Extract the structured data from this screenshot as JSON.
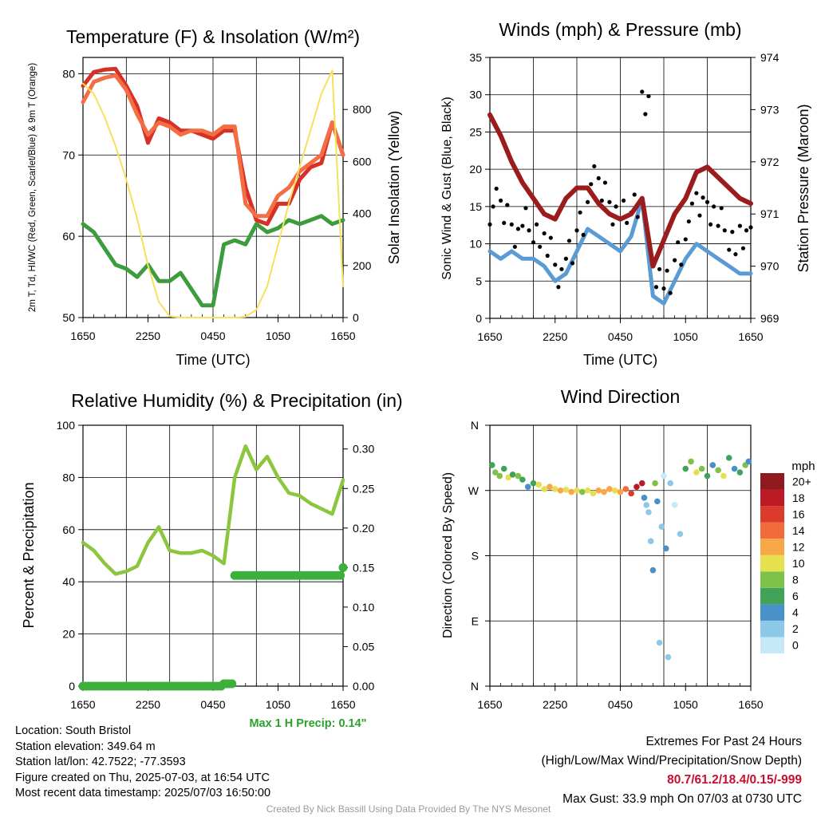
{
  "chart_data": [
    {
      "type": "line",
      "title": "Temperature (F) & Insolation (W/m²)",
      "xlabel": "Time (UTC)",
      "ylabel_left": "2m T, Td, HI/WC (Red, Green, Scarlet/Blue) & 9m T (Orange)",
      "ylabel_right": "Solar Insolation (Yellow)",
      "x_ticks": [
        "1650",
        "2250",
        "0450",
        "1050",
        "1650"
      ],
      "ylim_left": [
        50,
        82
      ],
      "yticks_left": [
        "50",
        "60",
        "70",
        "80"
      ],
      "ylim_right": [
        0,
        1000
      ],
      "yticks_right": [
        "0",
        "200",
        "400",
        "600",
        "800"
      ],
      "x_hours": [
        0,
        1,
        2,
        3,
        4,
        5,
        6,
        7,
        8,
        9,
        10,
        11,
        12,
        13,
        14,
        15,
        16,
        17,
        18,
        19,
        20,
        21,
        22,
        23,
        24
      ],
      "series": [
        {
          "color": "#d73027",
          "axis": "left",
          "values": [
            78.5,
            80.2,
            80.5,
            80.6,
            78.5,
            76.0,
            71.5,
            74.5,
            74.0,
            73.0,
            73.0,
            72.5,
            72.0,
            73.0,
            73.0,
            66.0,
            62.0,
            61.5,
            64.0,
            64.0,
            67.0,
            68.5,
            69.0,
            74.0,
            70.0
          ]
        },
        {
          "color": "#f46d43",
          "axis": "left",
          "values": [
            76.5,
            79.0,
            79.5,
            79.8,
            78.0,
            75.0,
            72.5,
            74.0,
            73.5,
            72.5,
            73.0,
            73.0,
            72.5,
            73.5,
            73.5,
            64.0,
            62.5,
            62.5,
            65.0,
            66.0,
            68.0,
            69.0,
            70.0,
            74.0,
            70.0
          ]
        },
        {
          "color": "#3d9c3d",
          "axis": "left",
          "values": [
            61.5,
            60.5,
            58.5,
            56.5,
            56.0,
            55.0,
            56.5,
            54.5,
            54.5,
            55.5,
            53.5,
            51.5,
            51.5,
            59.0,
            59.5,
            59.0,
            61.5,
            60.5,
            61.0,
            62.0,
            61.5,
            62.0,
            62.5,
            61.5,
            62.0
          ]
        },
        {
          "color": "#f7e05b",
          "axis": "right",
          "values": [
            900,
            860,
            770,
            660,
            530,
            380,
            200,
            60,
            5,
            0,
            0,
            0,
            0,
            0,
            0,
            3,
            30,
            120,
            280,
            440,
            580,
            720,
            860,
            950,
            120
          ]
        }
      ]
    },
    {
      "type": "line",
      "title": "Winds (mph) & Pressure (mb)",
      "xlabel": "Time (UTC)",
      "ylabel_left": "Sonic Wind & Gust (Blue, Black)",
      "ylabel_right": "Station Pressure (Maroon)",
      "x_ticks": [
        "1650",
        "2250",
        "0450",
        "1050",
        "1650"
      ],
      "ylim_left": [
        0,
        35
      ],
      "yticks_left": [
        "0",
        "5",
        "10",
        "15",
        "20",
        "25",
        "30",
        "35"
      ],
      "ylim_right": [
        969,
        974
      ],
      "yticks_right": [
        "969",
        "970",
        "971",
        "972",
        "973",
        "974"
      ],
      "x_hours": [
        0,
        1,
        2,
        3,
        4,
        5,
        6,
        7,
        8,
        9,
        10,
        11,
        12,
        13,
        14,
        15,
        16,
        17,
        18,
        19,
        20,
        21,
        22,
        23,
        24
      ],
      "series": [
        {
          "color": "#5b9bd5",
          "axis": "left",
          "values": [
            9,
            8,
            9,
            8,
            8,
            7,
            5,
            6,
            9,
            12,
            11,
            10,
            9,
            11,
            16,
            3,
            2,
            5,
            8,
            10,
            9,
            8,
            7,
            6,
            6
          ]
        },
        {
          "color": "#000000",
          "axis": "left",
          "style": "dots",
          "values": [
            15,
            14,
            12,
            13,
            12,
            9,
            6,
            8,
            13,
            18,
            17,
            15,
            14,
            16,
            28,
            6,
            4,
            9,
            13,
            15,
            15,
            13,
            11,
            10,
            11
          ]
        },
        {
          "color": "#9b1c1c",
          "axis": "right",
          "values": [
            972.9,
            972.5,
            972.0,
            971.6,
            971.3,
            971.0,
            970.9,
            971.3,
            971.5,
            971.5,
            971.2,
            971.0,
            970.9,
            971.0,
            971.3,
            970.0,
            970.5,
            971.0,
            971.3,
            971.8,
            971.9,
            971.7,
            971.5,
            971.3,
            971.2
          ]
        }
      ]
    },
    {
      "type": "line",
      "title": "Relative Humidity (%) & Precipitation (in)",
      "xlabel": "",
      "ylabel_left": "Percent & Precipitation",
      "x_ticks": [
        "1650",
        "2250",
        "0450",
        "1050",
        "1650"
      ],
      "ylim_left": [
        0,
        100
      ],
      "yticks_left": [
        "0",
        "20",
        "40",
        "60",
        "80",
        "100"
      ],
      "ylim_right": [
        0,
        0.33
      ],
      "yticks_right": [
        "0.00",
        "0.05",
        "0.10",
        "0.15",
        "0.20",
        "0.25",
        "0.30"
      ],
      "x_hours": [
        0,
        1,
        2,
        3,
        4,
        5,
        6,
        7,
        8,
        9,
        10,
        11,
        12,
        13,
        14,
        15,
        16,
        17,
        18,
        19,
        20,
        21,
        22,
        23,
        24
      ],
      "series": [
        {
          "color": "#8cc63f",
          "axis": "left",
          "values": [
            55,
            52,
            47,
            43,
            44,
            46,
            55,
            61,
            52,
            51,
            51,
            52,
            50,
            47,
            80,
            92,
            83,
            88,
            80,
            74,
            73,
            70,
            68,
            66,
            79
          ]
        },
        {
          "color": "#3daf3d",
          "axis": "right",
          "style": "dots",
          "values": [
            0,
            0,
            0,
            0,
            0,
            0,
            0,
            0,
            0,
            0,
            0,
            0,
            0,
            0.003,
            0.14,
            0.14,
            0.14,
            0.14,
            0.14,
            0.14,
            0.14,
            0.14,
            0.14,
            0.14,
            0.15
          ]
        }
      ],
      "annotation": "Max 1 H Precip: 0.14\""
    },
    {
      "type": "scatter",
      "title": "Wind Direction",
      "ylabel": "Direction (Colored By Speed)",
      "x_ticks": [
        "1650",
        "2250",
        "0450",
        "1050",
        "1650"
      ],
      "ylim": [
        0,
        360
      ],
      "yticks": [
        "N",
        "E",
        "S",
        "W",
        "N"
      ],
      "colorbar_title": "mph",
      "colorbar_labels": [
        "0",
        "2",
        "4",
        "6",
        "8",
        "10",
        "12",
        "14",
        "16",
        "18",
        "20+"
      ],
      "colorbar_colors": [
        "#c6e9f7",
        "#8cc8e8",
        "#4a90c8",
        "#41a35a",
        "#7fc24a",
        "#e6df50",
        "#f7a747",
        "#f26b3a",
        "#db3b2c",
        "#bb1a25",
        "#8e1a1f"
      ],
      "points_hour": [
        0.2,
        0.5,
        0.9,
        1.3,
        1.7,
        2.1,
        2.6,
        3.0,
        3.5,
        4.0,
        4.5,
        5.0,
        5.5,
        6.0,
        6.5,
        7.0,
        7.5,
        8.0,
        8.5,
        9.0,
        9.5,
        10.0,
        10.5,
        11.0,
        11.5,
        12.0,
        12.5,
        13.0,
        13.5,
        14.0,
        14.2,
        14.4,
        14.6,
        14.8,
        15.0,
        15.2,
        15.4,
        15.6,
        15.8,
        16.0,
        16.2,
        16.4,
        16.6,
        17.0,
        17.5,
        18.0,
        18.5,
        19.0,
        19.5,
        20.0,
        20.5,
        21.0,
        21.5,
        22.0,
        22.5,
        23.0,
        23.5,
        23.8
      ],
      "points_deg": [
        305,
        295,
        290,
        300,
        288,
        292,
        290,
        285,
        275,
        280,
        278,
        272,
        275,
        272,
        270,
        271,
        268,
        270,
        268,
        270,
        266,
        270,
        268,
        272,
        270,
        268,
        272,
        266,
        275,
        280,
        260,
        250,
        240,
        200,
        160,
        280,
        255,
        60,
        220,
        290,
        190,
        40,
        280,
        250,
        210,
        300,
        310,
        295,
        300,
        290,
        305,
        298,
        290,
        315,
        300,
        295,
        305,
        310
      ],
      "points_speed": [
        7,
        9,
        8,
        6,
        10,
        7,
        9,
        7,
        5,
        6,
        10,
        11,
        12,
        11,
        12,
        10,
        12,
        11,
        9,
        11,
        10,
        12,
        13,
        12,
        11,
        12,
        14,
        16,
        18,
        19,
        4,
        3,
        2,
        3,
        4,
        8,
        5,
        2,
        3,
        1,
        4,
        3,
        2,
        1,
        2,
        6,
        9,
        10,
        8,
        6,
        5,
        9,
        11,
        7,
        5,
        6,
        8,
        4
      ]
    }
  ],
  "info": {
    "location": "Location: South Bristol",
    "elevation": "Station elevation: 349.64 m",
    "latlon": "Station lat/lon: 42.7522; -77.3593",
    "created": "Figure created on Thu, 2025-07-03, at 16:54 UTC",
    "recent": "Most recent data timestamp: 2025/07/03 16:50:00"
  },
  "extremes": {
    "title": "Extremes For Past 24 Hours",
    "subtitle": "(High/Low/Max Wind/Precipitation/Snow Depth)",
    "values": "80.7/61.2/18.4/0.15/-999",
    "gust": "Max Gust: 33.9 mph On 07/03 at 0730 UTC"
  },
  "footer": "Created By Nick Bassill Using Data Provided By The NYS Mesonet"
}
